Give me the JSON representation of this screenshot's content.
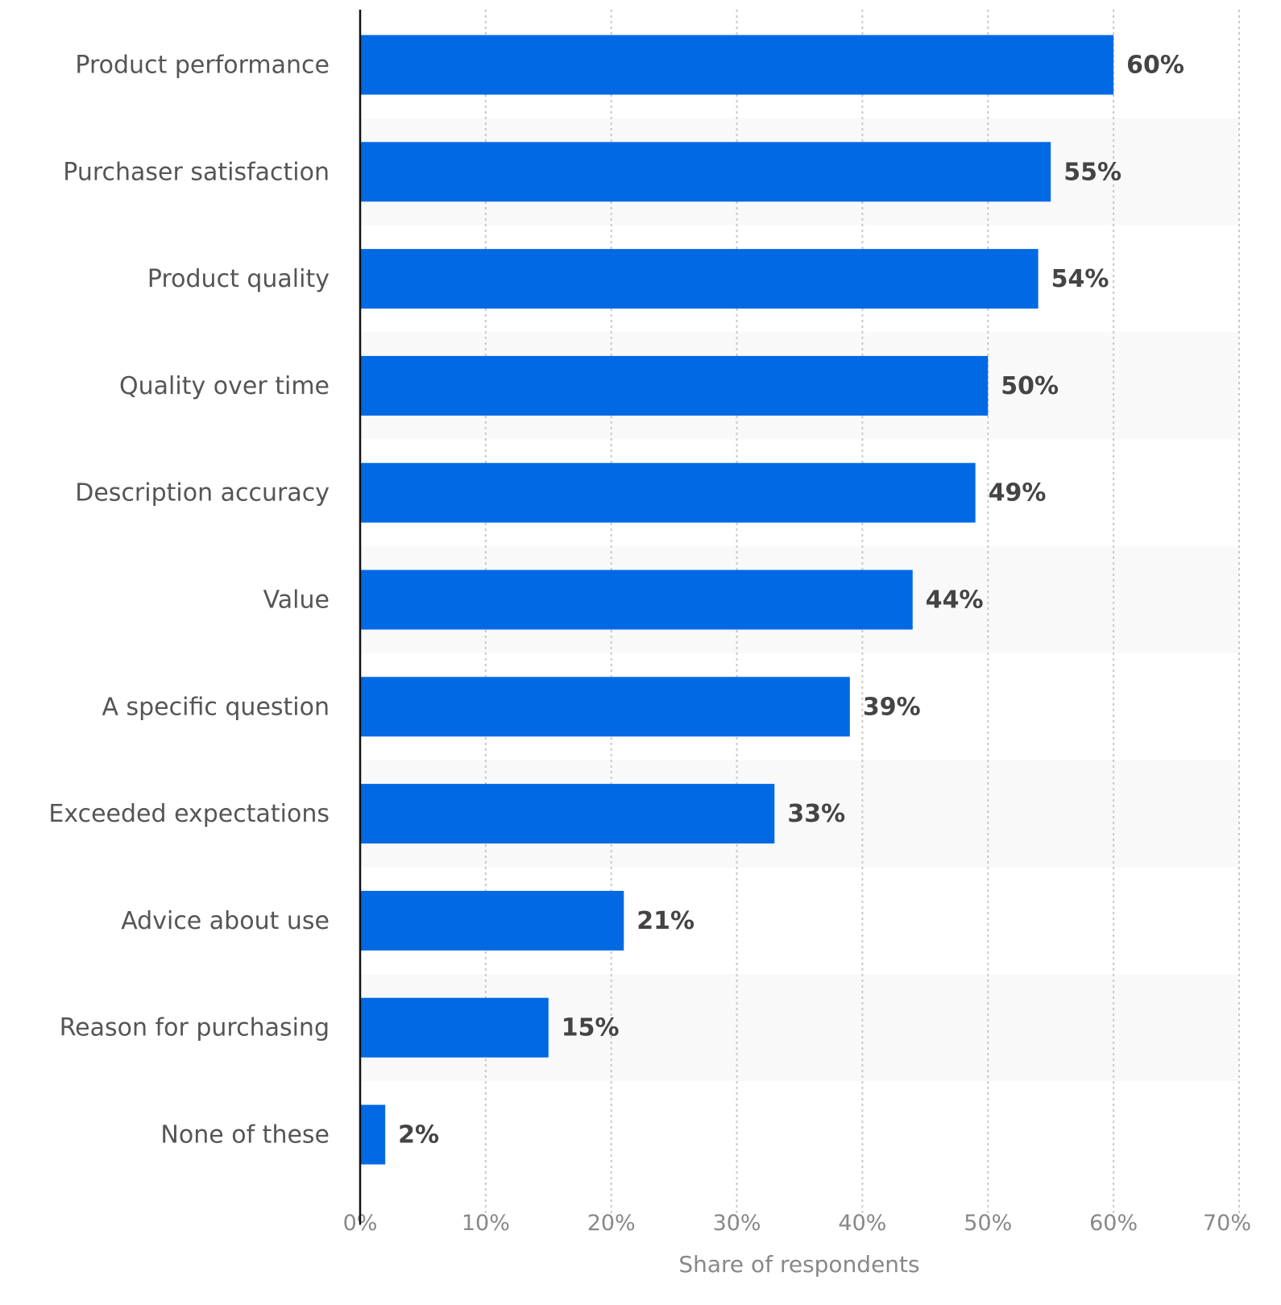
{
  "chart_data": {
    "type": "bar",
    "orientation": "horizontal",
    "categories": [
      "Product performance",
      "Purchaser satisfaction",
      "Product quality",
      "Quality over time",
      "Description accuracy",
      "Value",
      "A specific question",
      "Exceeded expectations",
      "Advice about use",
      "Reason for purchasing",
      "None of these"
    ],
    "values": [
      60,
      55,
      54,
      50,
      49,
      44,
      39,
      33,
      21,
      15,
      2
    ],
    "value_labels": [
      "60%",
      "55%",
      "54%",
      "50%",
      "49%",
      "44%",
      "39%",
      "33%",
      "21%",
      "15%",
      "2%"
    ],
    "xlabel": "Share of respondents",
    "ylabel": "",
    "xlim": [
      0,
      70
    ],
    "ticks": [
      "0%",
      "10%",
      "20%",
      "30%",
      "40%",
      "50%",
      "60%",
      "70%"
    ],
    "grid": "vertical dotted",
    "bar_color": "#0069e3",
    "band_color": "#f9f9f9"
  }
}
